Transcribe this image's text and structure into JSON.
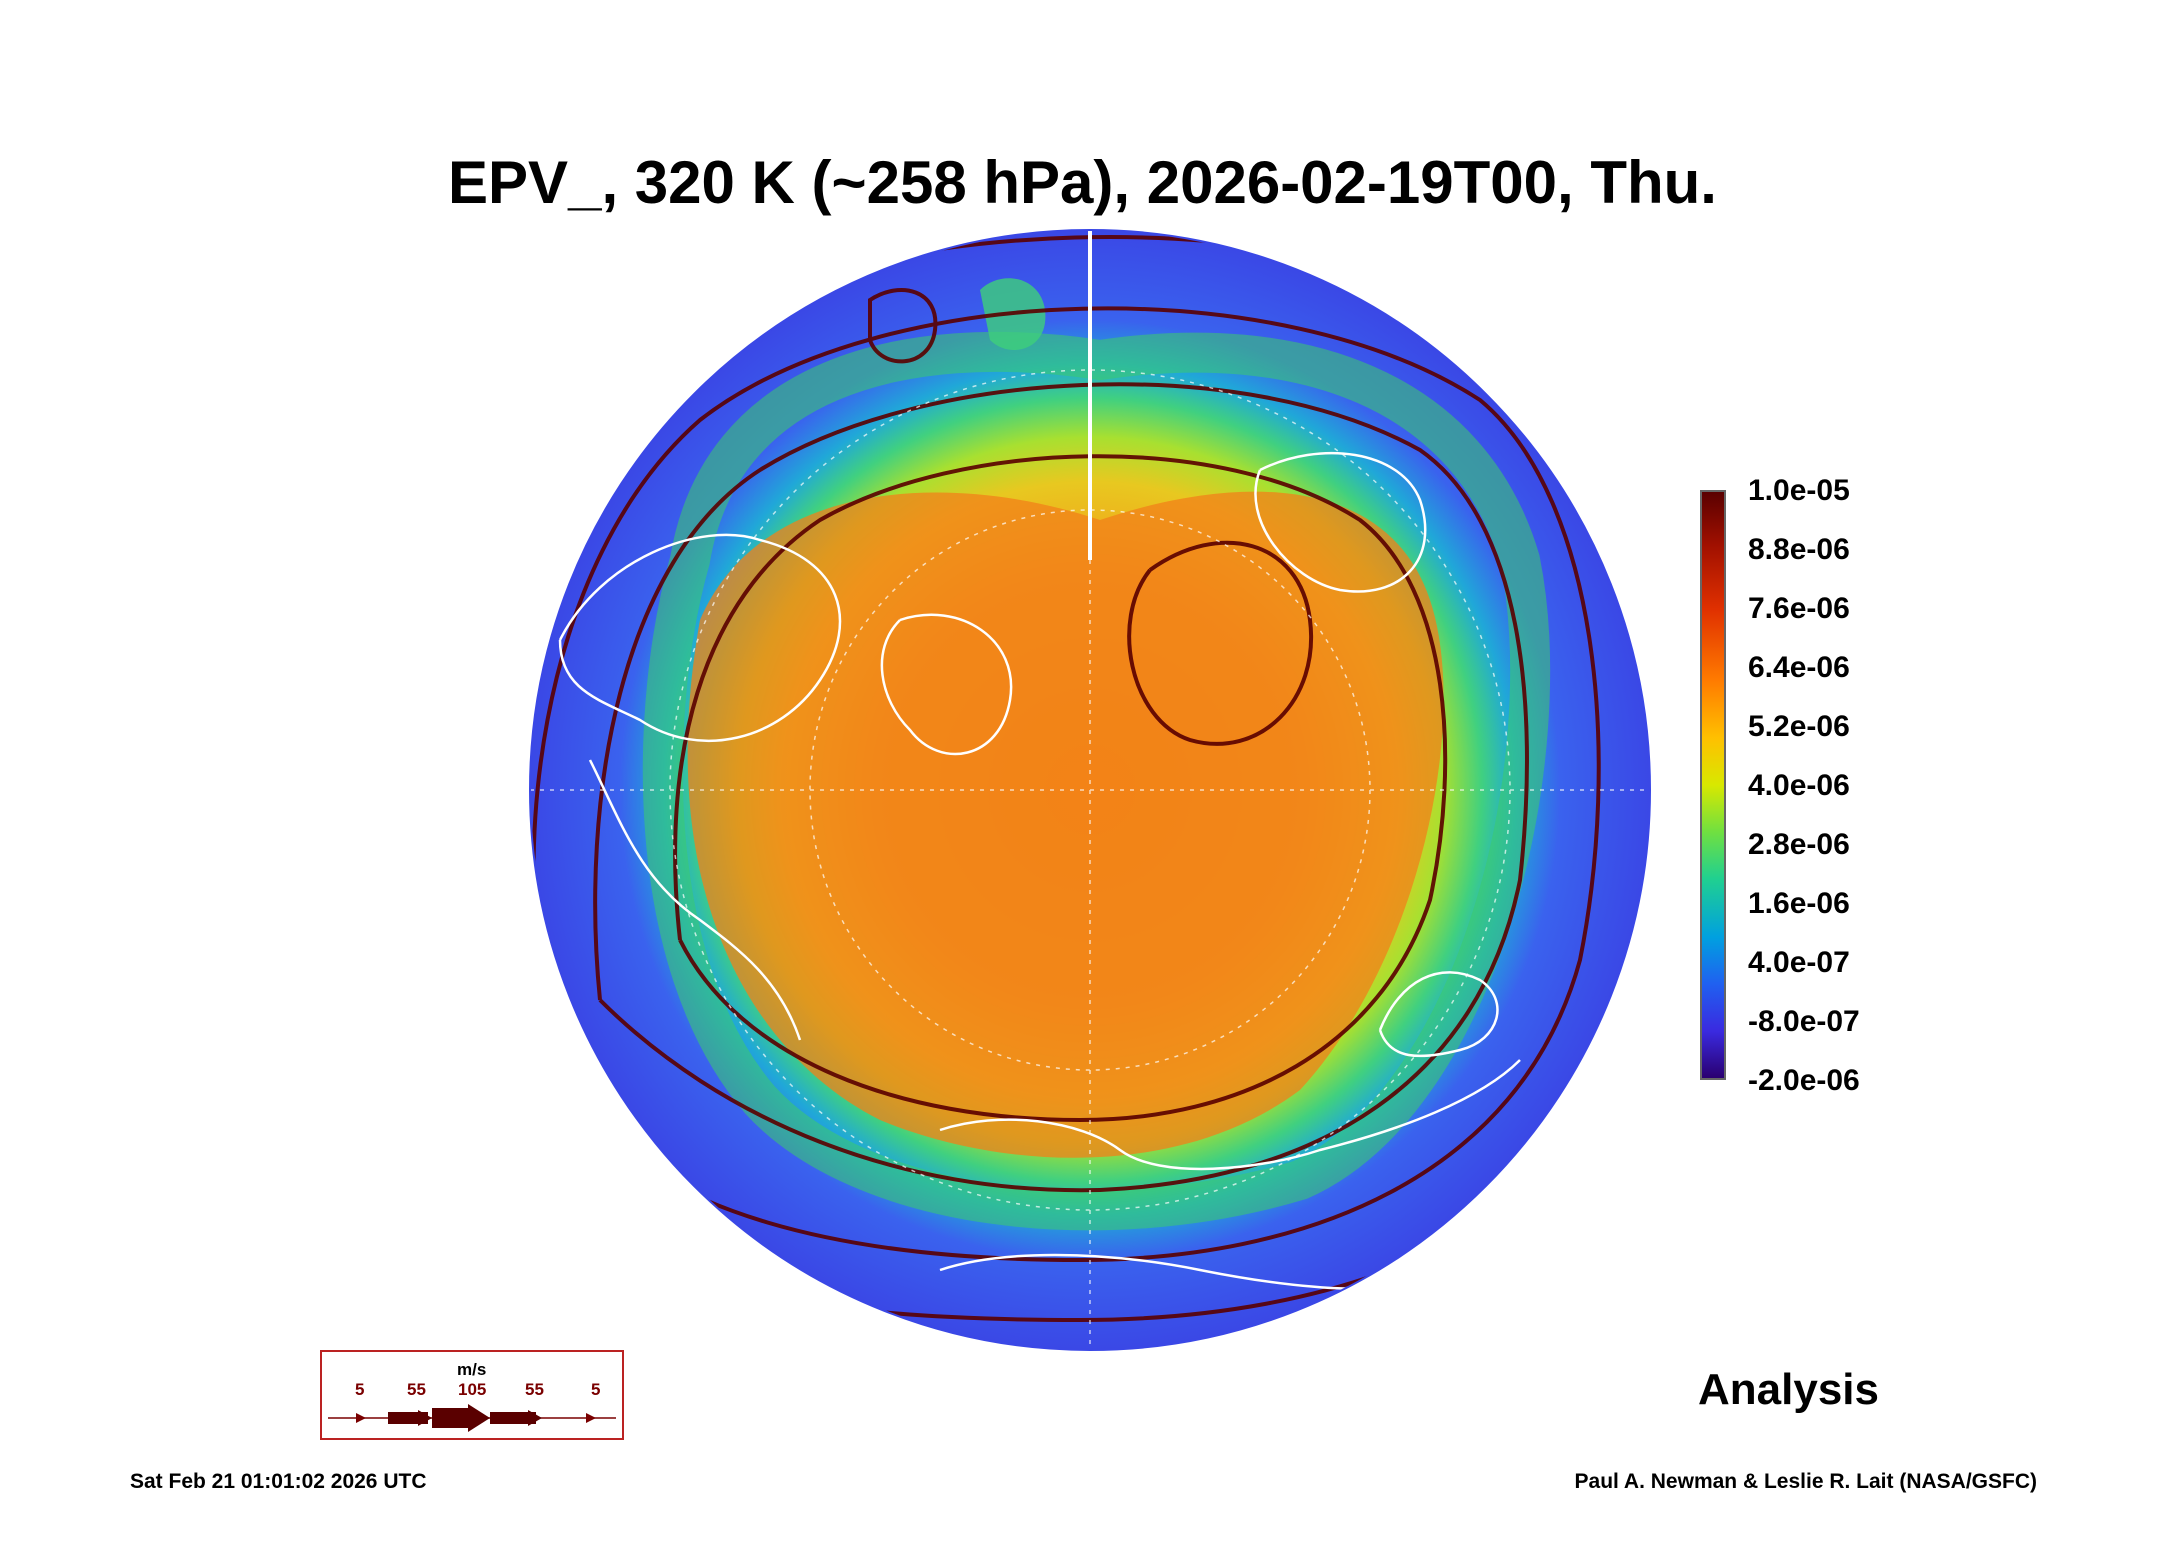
{
  "title": "EPV_, 320 K (~258 hPa), 2026-02-19T00, Thu.",
  "colorbar": {
    "labels": [
      "1.0e-05",
      "8.8e-06",
      "7.6e-06",
      "6.4e-06",
      "5.2e-06",
      "4.0e-06",
      "2.8e-06",
      "1.6e-06",
      "4.0e-07",
      "-8.0e-07",
      "-2.0e-06"
    ]
  },
  "wind_legend": {
    "unit": "m/s",
    "values": [
      "5",
      "55",
      "105",
      "55",
      "5"
    ]
  },
  "panel_label": "Analysis",
  "footer": {
    "timestamp": "Sat Feb 21 01:01:02 2026 UTC",
    "credit": "Paul A. Newman & Leslie R. Lait (NASA/GSFC)"
  },
  "colors": {
    "ocean_low": "#3a4ee8",
    "high_pv": "#f07a10",
    "streamline": "#5a0000",
    "coastline": "#ffffff"
  }
}
